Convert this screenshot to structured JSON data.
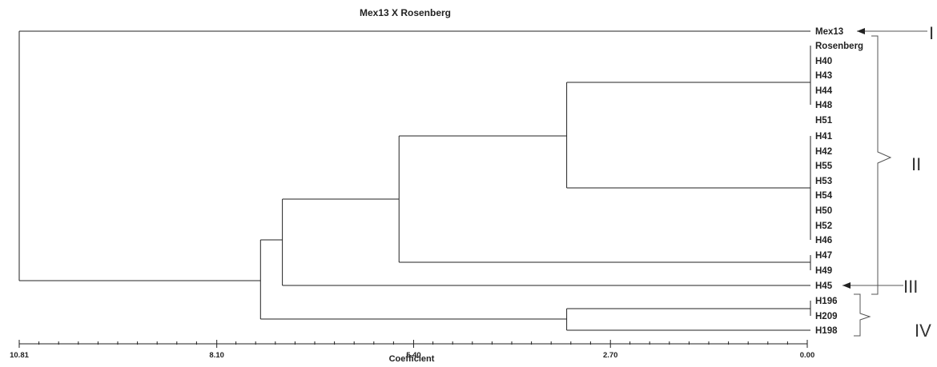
{
  "title": "Mex13 X Rosenberg",
  "axis": {
    "label": "Coefficient",
    "ticks": [
      "10.81",
      "8.10",
      "5.40",
      "2.70",
      "0.00"
    ],
    "range": [
      10.81,
      0.0
    ]
  },
  "leaves": [
    "Mex13",
    "Rosenberg",
    "H40",
    "H43",
    "H44",
    "H48",
    "H51",
    "H41",
    "H42",
    "H55",
    "H53",
    "H54",
    "H50",
    "H52",
    "H46",
    "H47",
    "H49",
    "H45",
    "H196",
    "H209",
    "H198"
  ],
  "groups": [
    "I",
    "II",
    "III",
    "IV"
  ],
  "chart_data": {
    "type": "dendrogram",
    "title": "Mex13 X Rosenberg",
    "xlabel": "Coefficient",
    "xlim": [
      10.81,
      0.0
    ],
    "clusters": [
      {
        "members": [
          "Rosenberg",
          "H40",
          "H43",
          "H44",
          "H48",
          "H51"
        ],
        "height": 0.0
      },
      {
        "members": [
          "H41",
          "H42",
          "H55",
          "H53",
          "H54",
          "H50",
          "H52",
          "H46"
        ],
        "height": 0.0
      },
      {
        "members": [
          "H47",
          "H49"
        ],
        "height": 0.0
      },
      {
        "members": [
          "H196",
          "H209"
        ],
        "height": 0.0
      },
      {
        "members": [
          "Rosenberg-H51 cluster",
          "H41-H46 cluster"
        ],
        "height": 3.3
      },
      {
        "members": [
          "H196-H209 cluster",
          "H198"
        ],
        "height": 3.3
      },
      {
        "members": [
          "H40-H46 super-cluster",
          "H47-H49 cluster"
        ],
        "height": 5.6
      },
      {
        "members": [
          "Rosenberg-H49 cluster",
          "H45"
        ],
        "height": 7.2
      },
      {
        "members": [
          "Rosenberg-H45 cluster",
          "H196-H198 cluster"
        ],
        "height": 7.5
      },
      {
        "members": [
          "Mex13",
          "all others"
        ],
        "height": 10.81
      }
    ]
  }
}
